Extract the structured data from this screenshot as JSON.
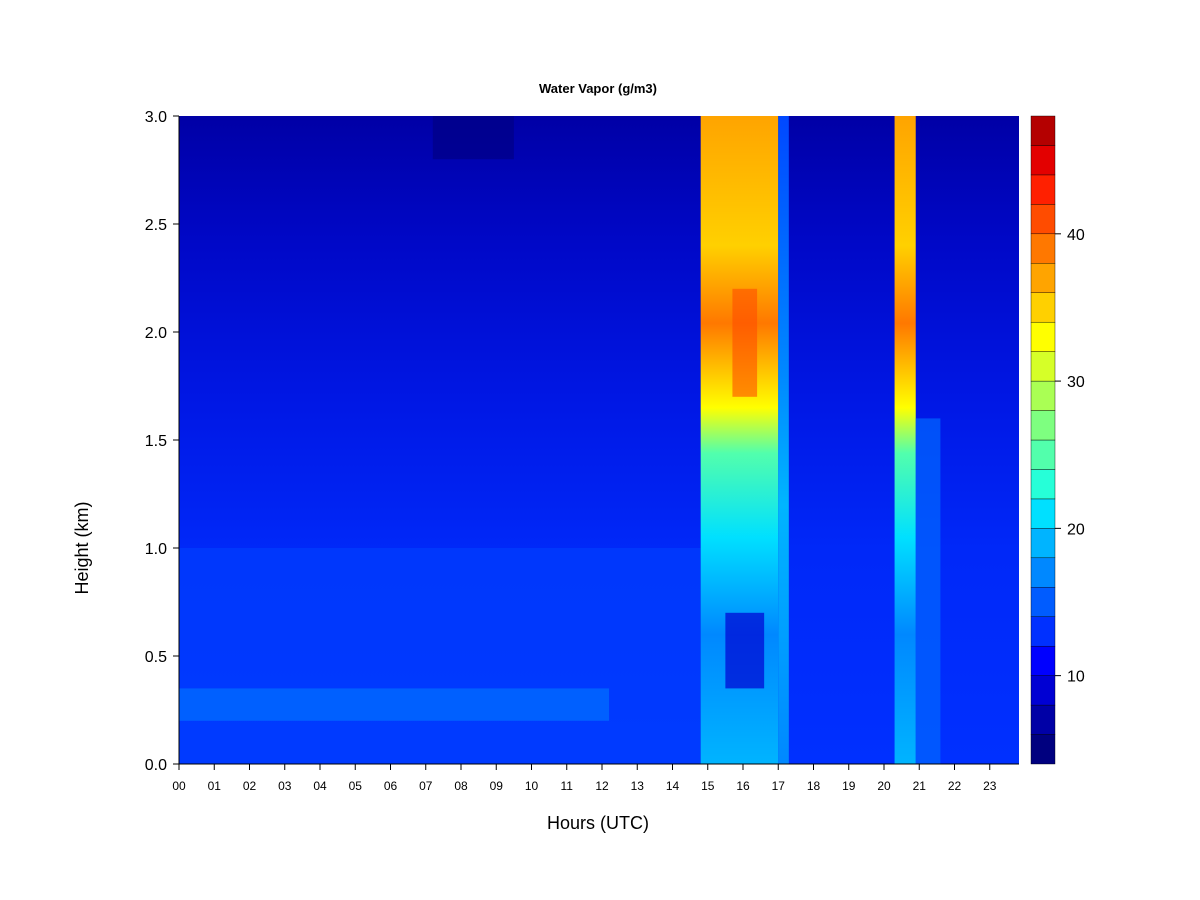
{
  "chart_data": {
    "type": "heatmap",
    "title": "Water Vapor (g/m3)",
    "xlabel": "Hours (UTC)",
    "ylabel": "Height (km)",
    "x_ticks": [
      "00",
      "01",
      "02",
      "03",
      "04",
      "05",
      "06",
      "07",
      "08",
      "09",
      "10",
      "11",
      "12",
      "13",
      "14",
      "15",
      "16",
      "17",
      "18",
      "19",
      "20",
      "21",
      "22",
      "23"
    ],
    "xlim": [
      0,
      23.9
    ],
    "y_ticks": [
      "0.0",
      "0.5",
      "1.0",
      "1.5",
      "2.0",
      "2.5",
      "3.0"
    ],
    "ylim": [
      0,
      3.0
    ],
    "colorbar": {
      "ticks": [
        "10",
        "20",
        "30",
        "40"
      ],
      "range": [
        4,
        48
      ],
      "levels": [
        4,
        6,
        8,
        10,
        12,
        14,
        16,
        18,
        20,
        22,
        24,
        26,
        28,
        30,
        32,
        34,
        36,
        38,
        40,
        42,
        44,
        46,
        48
      ],
      "colors": [
        "#00007f",
        "#0000a6",
        "#0000d3",
        "#0000ff",
        "#0030ff",
        "#005cff",
        "#0088ff",
        "#00b4ff",
        "#00e0ff",
        "#26ffd8",
        "#52ffac",
        "#7eff80",
        "#aaff54",
        "#d6ff28",
        "#ffff00",
        "#ffd000",
        "#ffa400",
        "#ff7800",
        "#ff4c00",
        "#ff2000",
        "#e30000",
        "#b40000"
      ]
    },
    "grid": false,
    "legend": "colorbar-right"
  }
}
